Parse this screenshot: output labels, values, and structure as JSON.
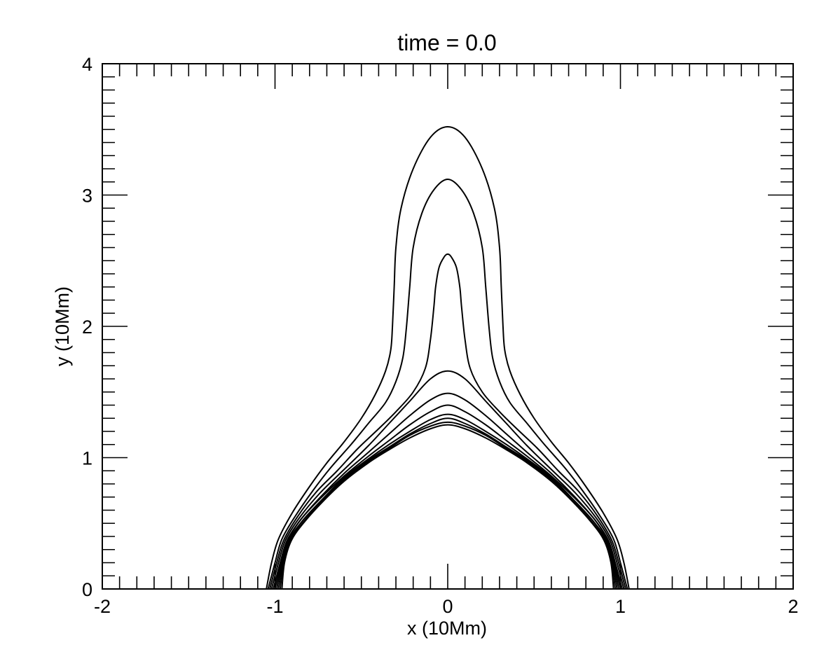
{
  "chart_data": {
    "type": "line",
    "title": "time =  0.0",
    "xlabel": "x (10Mm)",
    "ylabel": "y (10Mm)",
    "xlim": [
      -2,
      2
    ],
    "ylim": [
      0,
      4
    ],
    "xticks": [
      -2,
      -1,
      0,
      1,
      2
    ],
    "yticks": [
      0,
      1,
      2,
      3,
      4
    ],
    "xtick_labels": [
      "-2",
      "-1",
      "0",
      "1",
      "2"
    ],
    "ytick_labels": [
      "0",
      "1",
      "2",
      "3",
      "4"
    ],
    "grid": false,
    "legend": "none",
    "line_color": "#000000",
    "series": [
      {
        "x": [
          -1.05,
          -1.02,
          -0.98,
          -0.9,
          -0.8,
          -0.7,
          -0.6,
          -0.5,
          -0.42,
          -0.36,
          -0.33,
          -0.32,
          -0.31,
          -0.3,
          -0.27,
          -0.2,
          -0.1,
          0,
          0.1,
          0.2,
          0.27,
          0.3,
          0.31,
          0.32,
          0.33,
          0.36,
          0.42,
          0.5,
          0.6,
          0.7,
          0.8,
          0.9,
          0.98,
          1.02,
          1.05
        ],
        "y": [
          0,
          0.2,
          0.38,
          0.58,
          0.78,
          0.96,
          1.12,
          1.3,
          1.48,
          1.66,
          1.82,
          2.0,
          2.3,
          2.6,
          2.9,
          3.2,
          3.44,
          3.52,
          3.44,
          3.2,
          2.9,
          2.6,
          2.3,
          2.0,
          1.82,
          1.66,
          1.48,
          1.3,
          1.12,
          0.96,
          0.78,
          0.58,
          0.38,
          0.2,
          0
        ]
      },
      {
        "x": [
          -1.04,
          -1.0,
          -0.96,
          -0.88,
          -0.78,
          -0.68,
          -0.56,
          -0.46,
          -0.36,
          -0.3,
          -0.26,
          -0.24,
          -0.22,
          -0.2,
          -0.15,
          -0.08,
          0,
          0.08,
          0.15,
          0.2,
          0.22,
          0.24,
          0.26,
          0.3,
          0.36,
          0.46,
          0.56,
          0.68,
          0.78,
          0.88,
          0.96,
          1.0,
          1.04
        ],
        "y": [
          0,
          0.2,
          0.38,
          0.56,
          0.75,
          0.92,
          1.1,
          1.26,
          1.42,
          1.58,
          1.76,
          1.98,
          2.3,
          2.6,
          2.86,
          3.04,
          3.12,
          3.04,
          2.86,
          2.6,
          2.3,
          1.98,
          1.76,
          1.58,
          1.42,
          1.26,
          1.1,
          0.92,
          0.75,
          0.56,
          0.38,
          0.2,
          0
        ]
      },
      {
        "x": [
          -1.03,
          -0.99,
          -0.95,
          -0.87,
          -0.76,
          -0.64,
          -0.52,
          -0.4,
          -0.3,
          -0.2,
          -0.13,
          -0.1,
          -0.08,
          -0.07,
          -0.05,
          -0.02,
          0,
          0.02,
          0.05,
          0.07,
          0.08,
          0.1,
          0.13,
          0.2,
          0.3,
          0.4,
          0.52,
          0.64,
          0.76,
          0.87,
          0.95,
          0.99,
          1.03
        ],
        "y": [
          0,
          0.2,
          0.37,
          0.55,
          0.74,
          0.9,
          1.07,
          1.22,
          1.35,
          1.5,
          1.68,
          1.9,
          2.15,
          2.3,
          2.45,
          2.53,
          2.55,
          2.53,
          2.45,
          2.3,
          2.15,
          1.9,
          1.68,
          1.5,
          1.35,
          1.22,
          1.07,
          0.9,
          0.74,
          0.55,
          0.37,
          0.2,
          0
        ]
      },
      {
        "x": [
          -1.02,
          -0.98,
          -0.94,
          -0.86,
          -0.74,
          -0.6,
          -0.46,
          -0.34,
          -0.22,
          -0.1,
          0,
          0.1,
          0.22,
          0.34,
          0.46,
          0.6,
          0.74,
          0.86,
          0.94,
          0.98,
          1.02
        ],
        "y": [
          0,
          0.2,
          0.37,
          0.54,
          0.73,
          0.91,
          1.09,
          1.26,
          1.43,
          1.6,
          1.66,
          1.6,
          1.43,
          1.26,
          1.09,
          0.91,
          0.73,
          0.54,
          0.37,
          0.2,
          0
        ]
      },
      {
        "x": [
          -1.01,
          -0.97,
          -0.93,
          -0.85,
          -0.73,
          -0.6,
          -0.46,
          -0.34,
          -0.22,
          -0.1,
          0,
          0.1,
          0.22,
          0.34,
          0.46,
          0.6,
          0.73,
          0.85,
          0.93,
          0.97,
          1.01
        ],
        "y": [
          0,
          0.2,
          0.37,
          0.53,
          0.71,
          0.88,
          1.04,
          1.18,
          1.32,
          1.44,
          1.49,
          1.44,
          1.32,
          1.18,
          1.04,
          0.88,
          0.71,
          0.53,
          0.37,
          0.2,
          0
        ]
      },
      {
        "x": [
          -1.0,
          -0.965,
          -0.925,
          -0.85,
          -0.73,
          -0.6,
          -0.46,
          -0.34,
          -0.22,
          -0.1,
          0,
          0.1,
          0.22,
          0.34,
          0.46,
          0.6,
          0.73,
          0.85,
          0.925,
          0.965,
          1.0
        ],
        "y": [
          0,
          0.2,
          0.37,
          0.53,
          0.7,
          0.86,
          1.01,
          1.13,
          1.25,
          1.35,
          1.4,
          1.35,
          1.25,
          1.13,
          1.01,
          0.86,
          0.7,
          0.53,
          0.37,
          0.2,
          0
        ]
      },
      {
        "x": [
          -0.99,
          -0.96,
          -0.92,
          -0.84,
          -0.72,
          -0.6,
          -0.46,
          -0.34,
          -0.22,
          -0.1,
          0,
          0.1,
          0.22,
          0.34,
          0.46,
          0.6,
          0.72,
          0.84,
          0.92,
          0.96,
          0.99
        ],
        "y": [
          0,
          0.2,
          0.37,
          0.52,
          0.69,
          0.85,
          0.99,
          1.1,
          1.2,
          1.29,
          1.33,
          1.29,
          1.2,
          1.1,
          0.99,
          0.85,
          0.69,
          0.52,
          0.37,
          0.2,
          0
        ]
      },
      {
        "x": [
          -0.98,
          -0.955,
          -0.915,
          -0.84,
          -0.72,
          -0.6,
          -0.46,
          -0.34,
          -0.22,
          -0.1,
          0,
          0.1,
          0.22,
          0.34,
          0.46,
          0.6,
          0.72,
          0.84,
          0.915,
          0.955,
          0.98
        ],
        "y": [
          0,
          0.2,
          0.37,
          0.52,
          0.69,
          0.84,
          0.98,
          1.08,
          1.18,
          1.26,
          1.3,
          1.26,
          1.18,
          1.08,
          0.98,
          0.84,
          0.69,
          0.52,
          0.37,
          0.2,
          0
        ]
      },
      {
        "x": [
          -0.97,
          -0.95,
          -0.91,
          -0.835,
          -0.72,
          -0.6,
          -0.46,
          -0.34,
          -0.22,
          -0.1,
          0,
          0.1,
          0.22,
          0.34,
          0.46,
          0.6,
          0.72,
          0.835,
          0.91,
          0.95,
          0.97
        ],
        "y": [
          0,
          0.2,
          0.37,
          0.51,
          0.68,
          0.83,
          0.97,
          1.07,
          1.17,
          1.24,
          1.27,
          1.24,
          1.17,
          1.07,
          0.97,
          0.83,
          0.68,
          0.51,
          0.37,
          0.2,
          0
        ]
      },
      {
        "x": [
          -0.96,
          -0.945,
          -0.905,
          -0.83,
          -0.72,
          -0.6,
          -0.46,
          -0.34,
          -0.22,
          -0.1,
          0,
          0.1,
          0.22,
          0.34,
          0.46,
          0.6,
          0.72,
          0.83,
          0.905,
          0.945,
          0.96
        ],
        "y": [
          0,
          0.2,
          0.37,
          0.51,
          0.67,
          0.82,
          0.96,
          1.06,
          1.15,
          1.22,
          1.25,
          1.22,
          1.15,
          1.06,
          0.96,
          0.82,
          0.67,
          0.51,
          0.37,
          0.2,
          0
        ]
      }
    ]
  }
}
